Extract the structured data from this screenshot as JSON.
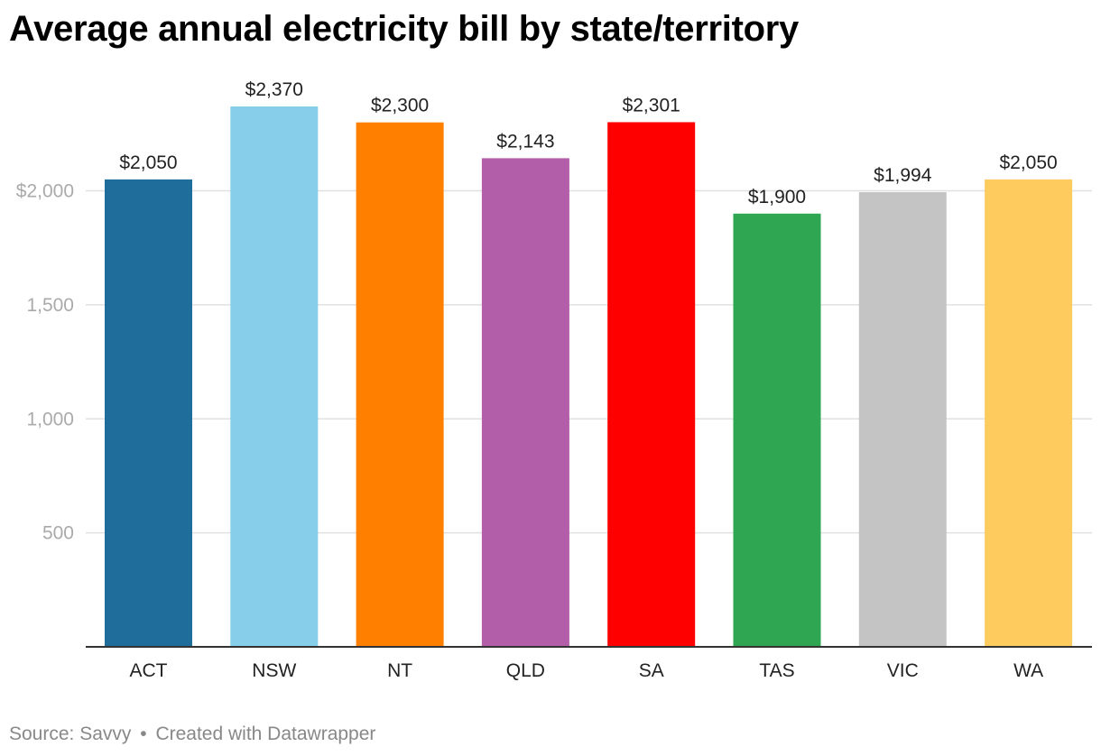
{
  "title": "Average annual electricity bill by state/territory",
  "footer": {
    "source": "Source: Savvy",
    "separator": "•",
    "credit": "Created with Datawrapper"
  },
  "chart_data": {
    "type": "bar",
    "title": "Average annual electricity bill by state/territory",
    "xlabel": "",
    "ylabel": "",
    "categories": [
      "ACT",
      "NSW",
      "NT",
      "QLD",
      "SA",
      "TAS",
      "VIC",
      "WA"
    ],
    "values": [
      2050,
      2370,
      2300,
      2143,
      2301,
      1900,
      1994,
      2050
    ],
    "value_labels": [
      "$2,050",
      "$2,370",
      "$2,300",
      "$2,143",
      "$2,301",
      "$1,900",
      "$1,994",
      "$2,050"
    ],
    "colors": [
      "#1f6d9b",
      "#87ceeb",
      "#ff7f00",
      "#b35ea9",
      "#ff0000",
      "#2ea652",
      "#c4c4c4",
      "#fecb5e"
    ],
    "ylim": [
      0,
      2370
    ],
    "yticks": [
      500,
      1000,
      1500,
      2000
    ],
    "ytick_labels": [
      "500",
      "1,000",
      "1,500",
      "$2,000"
    ],
    "grid": true,
    "legend": "none"
  }
}
